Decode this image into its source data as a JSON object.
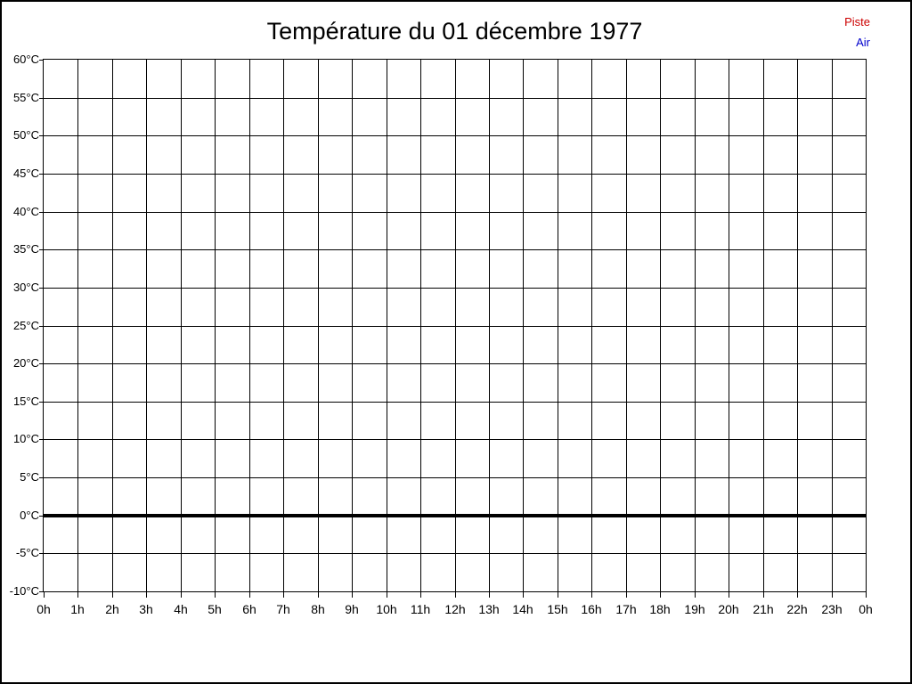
{
  "frame": {
    "background": "#ffffff",
    "border_color": "#000000"
  },
  "legend": {
    "position": "top-right",
    "items": [
      {
        "label": "Piste",
        "color": "#cc0000"
      },
      {
        "label": "Air",
        "color": "#0000cc"
      }
    ]
  },
  "chart_data": {
    "type": "line",
    "title": "Température du 01 décembre 1977",
    "xlabel": "",
    "ylabel": "",
    "x_ticks": [
      "0h",
      "1h",
      "2h",
      "3h",
      "4h",
      "5h",
      "6h",
      "7h",
      "8h",
      "9h",
      "10h",
      "11h",
      "12h",
      "13h",
      "14h",
      "15h",
      "16h",
      "17h",
      "18h",
      "19h",
      "20h",
      "21h",
      "22h",
      "23h",
      "0h"
    ],
    "y_ticks": [
      "60°C",
      "55°C",
      "50°C",
      "45°C",
      "40°C",
      "35°C",
      "30°C",
      "25°C",
      "20°C",
      "15°C",
      "10°C",
      "5°C",
      "0°C",
      "-5°C",
      "-10°C"
    ],
    "ylim": [
      -10,
      60
    ],
    "y_step": 5,
    "grid": true,
    "gridline_color": "#000000",
    "legend_position": "top-right",
    "zero_line": {
      "value": 0,
      "color": "#000000",
      "thickness_px": 4
    },
    "series": [
      {
        "name": "Piste",
        "color": "#cc0000",
        "values": []
      },
      {
        "name": "Air",
        "color": "#0000cc",
        "values": []
      }
    ]
  }
}
